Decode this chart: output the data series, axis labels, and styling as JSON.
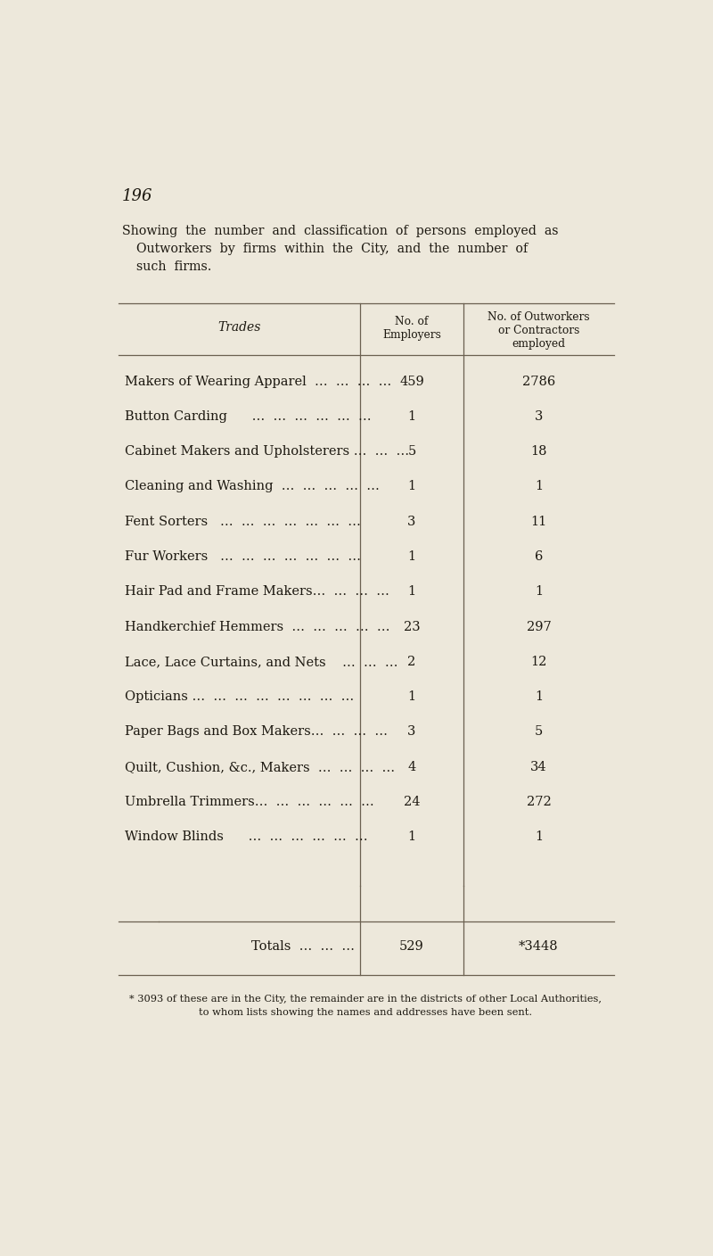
{
  "page_number": "196",
  "title_line1": "Showing  the  number  and  classification  of  persons  employed  as",
  "title_line2": "Outworkers  by  firms  within  the  City,  and  the  number  of",
  "title_line3": "such  firms.",
  "col1_header": "Trades",
  "col2_header": "No. of\nEmployers",
  "col3_header": "No. of Outworkers\nor Contractors\nemployed",
  "rows": [
    [
      "Makers of Wearing Apparel  …  …  …  …",
      "459",
      "2786"
    ],
    [
      "Button Carding      …  …  …  …  …  …",
      "1",
      "3"
    ],
    [
      "Cabinet Makers and Upholsterers …  …  …",
      "5",
      "18"
    ],
    [
      "Cleaning and Washing  …  …  …  …  …",
      "1",
      "1"
    ],
    [
      "Fent Sorters   …  …  …  …  …  …  …",
      "3",
      "11"
    ],
    [
      "Fur Workers   …  …  …  …  …  …  …",
      "1",
      "6"
    ],
    [
      "Hair Pad and Frame Makers…  …  …  …",
      "1",
      "1"
    ],
    [
      "Handkerchief Hemmers  …  …  …  …  …",
      "23",
      "297"
    ],
    [
      "Lace, Lace Curtains, and Nets    …  …  …",
      "2",
      "12"
    ],
    [
      "Opticians …  …  …  …  …  …  …  …",
      "1",
      "1"
    ],
    [
      "Paper Bags and Box Makers…  …  …  …",
      "3",
      "5"
    ],
    [
      "Quilt, Cushion, &c., Makers  …  …  …  …",
      "4",
      "34"
    ],
    [
      "Umbrella Trimmers…  …  …  …  …  …",
      "24",
      "272"
    ],
    [
      "Window Blinds      …  …  …  …  …  …",
      "1",
      "1"
    ]
  ],
  "totals_label": "Totals  …  …  …",
  "totals_employers": "529",
  "totals_outworkers": "*3448",
  "footnote_line1": "* 3093 of these are in the City, the remainder are in the districts of other Local Authorities,",
  "footnote_line2": "to whom lists showing the names and addresses have been sent.",
  "bg_color": "#ede8db",
  "text_color": "#1c1810",
  "line_color": "#6b6050"
}
